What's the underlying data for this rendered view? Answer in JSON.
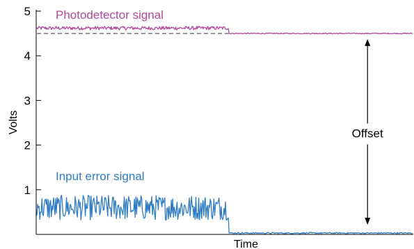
{
  "chart_data": {
    "type": "line",
    "title": "",
    "xlabel": "Time",
    "ylabel": "Volts",
    "ylim": [
      0,
      5
    ],
    "yticks": [
      1,
      2,
      3,
      4,
      5
    ],
    "xlim": [
      0,
      1
    ],
    "grid": false,
    "legend": "none",
    "step_x": 0.51,
    "series": [
      {
        "name": "Photodetector signal",
        "color": "#B0479C",
        "before_mean": 4.62,
        "before_noise": 0.04,
        "after_mean": 4.5,
        "after_noise": 0.01
      },
      {
        "name": "Input error signal",
        "color": "#2E7CC4",
        "before_mean": 0.6,
        "before_noise": 0.28,
        "after_mean": 0.03,
        "after_noise": 0.015
      }
    ],
    "reference_line": {
      "y": 4.5,
      "style": "dashed",
      "x_range": [
        0,
        0.51
      ]
    },
    "annotation": {
      "text": "Offset",
      "x": 0.88,
      "y_from": 0.03,
      "y_to": 4.5
    }
  }
}
